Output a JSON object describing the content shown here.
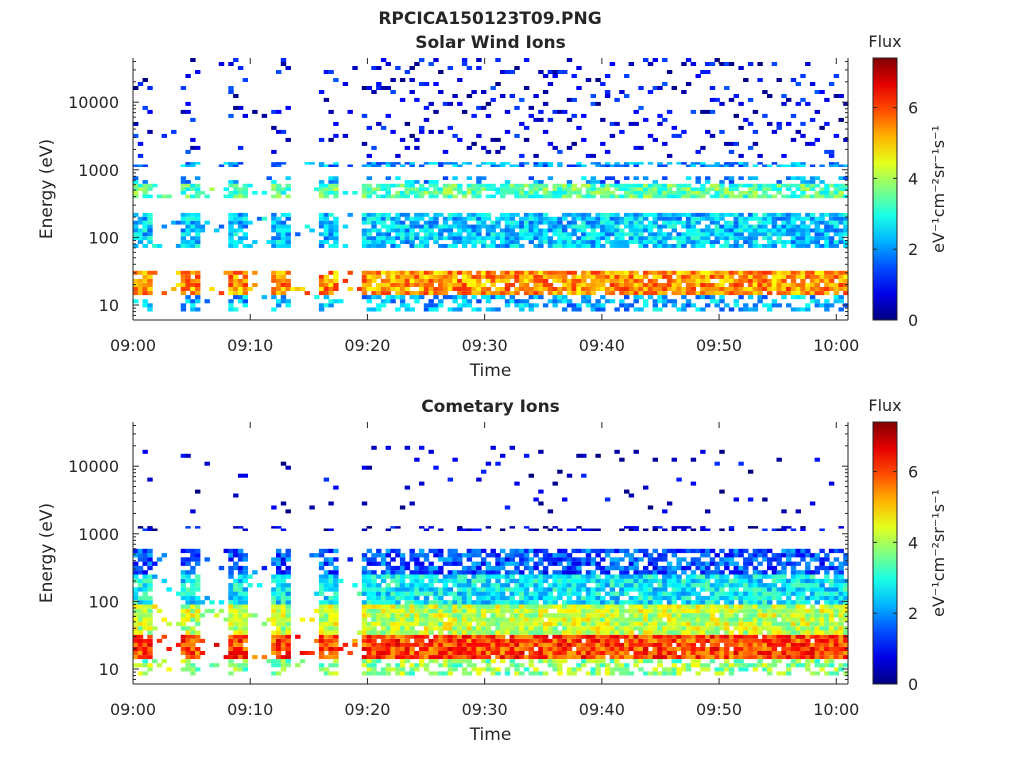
{
  "figure": {
    "title": "RPCICA150123T09.PNG"
  },
  "chart_data": [
    {
      "type": "heatmap",
      "title": "Solar Wind Ions",
      "xlabel": "Time",
      "ylabel": "Energy (eV)",
      "x_ticks": [
        "09:00",
        "09:10",
        "09:20",
        "09:30",
        "09:40",
        "09:50",
        "10:00"
      ],
      "x_range": [
        "09:00",
        "10:01"
      ],
      "y_scale": "log",
      "y_ticks": [
        10,
        100,
        1000,
        10000
      ],
      "y_tick_labels": [
        "10",
        "100",
        "1000",
        "10000"
      ],
      "y_range": [
        6,
        45000
      ],
      "colorbar": {
        "title": "Flux",
        "label": "eV⁻¹cm⁻²sr⁻¹s⁻¹",
        "range": [
          0,
          7.4
        ],
        "ticks": [
          "0",
          "2",
          "4",
          "6"
        ]
      },
      "colormap": "jet",
      "bands": [
        {
          "emin": 14,
          "emax": 32,
          "flux": 5.4,
          "density": 0.9
        },
        {
          "emin": 8,
          "emax": 14,
          "flux": 2.2,
          "density": 0.5
        },
        {
          "emin": 70,
          "emax": 230,
          "flux": 2.4,
          "density": 0.85
        },
        {
          "emin": 380,
          "emax": 620,
          "flux": 3.4,
          "density": 0.85
        },
        {
          "emin": 620,
          "emax": 800,
          "flux": 2.0,
          "density": 0.35
        },
        {
          "emin": 1100,
          "emax": 1300,
          "flux": 2.0,
          "density": 0.6
        },
        {
          "emin": 1500,
          "emax": 45000,
          "flux": 0.8,
          "density": 0.12
        }
      ]
    },
    {
      "type": "heatmap",
      "title": "Cometary Ions",
      "xlabel": "Time",
      "ylabel": "Energy (eV)",
      "x_ticks": [
        "09:00",
        "09:10",
        "09:20",
        "09:30",
        "09:40",
        "09:50",
        "10:00"
      ],
      "x_range": [
        "09:00",
        "10:01"
      ],
      "y_scale": "log",
      "y_ticks": [
        10,
        100,
        1000,
        10000
      ],
      "y_tick_labels": [
        "10",
        "100",
        "1000",
        "10000"
      ],
      "y_range": [
        6,
        45000
      ],
      "colorbar": {
        "title": "Flux",
        "label": "eV⁻¹cm⁻²sr⁻¹s⁻¹",
        "range": [
          0,
          7.4
        ],
        "ticks": [
          "0",
          "2",
          "4",
          "6"
        ]
      },
      "colormap": "jet",
      "bands": [
        {
          "emin": 14,
          "emax": 32,
          "flux": 6.0,
          "density": 0.95
        },
        {
          "emin": 8,
          "emax": 14,
          "flux": 3.8,
          "density": 0.6
        },
        {
          "emin": 32,
          "emax": 90,
          "flux": 4.2,
          "density": 0.95
        },
        {
          "emin": 90,
          "emax": 250,
          "flux": 2.7,
          "density": 0.9
        },
        {
          "emin": 250,
          "emax": 600,
          "flux": 1.5,
          "density": 0.7
        },
        {
          "emin": 1100,
          "emax": 1300,
          "flux": 0.6,
          "density": 0.35
        },
        {
          "emin": 2000,
          "emax": 20000,
          "flux": 0.5,
          "density": 0.04
        }
      ]
    }
  ]
}
